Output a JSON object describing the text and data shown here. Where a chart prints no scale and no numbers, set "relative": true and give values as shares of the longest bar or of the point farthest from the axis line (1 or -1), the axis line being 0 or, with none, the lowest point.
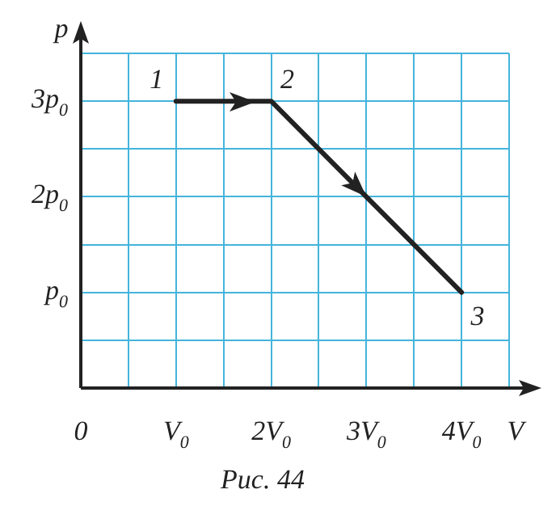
{
  "chart_data": {
    "type": "line",
    "xlabel": "V",
    "ylabel": "p",
    "relative": true,
    "categories": [
      "0",
      null,
      "V$_{0}$",
      null,
      "2V$_{0}$",
      null,
      "3V$_{0}$",
      null,
      "4V$_{0}$",
      null
    ],
    "series": [
      {
        "color": "#222222",
        "values": [
          null,
          null,
          1,
          null,
          1,
          null,
          null,
          null,
          0.3333,
          null
        ]
      }
    ],
    "grid": true,
    "marker": "none",
    "line_style": "solid",
    "legend": false,
    "annotations": [
      "p$_{0}$",
      "2p$_{0}$",
      "3p$_{0}$",
      {
        "text": "1",
        "x": "V$_{0}$",
        "y": 1
      },
      {
        "text": "2",
        "x": "2V$_{0}$",
        "y": 1
      },
      {
        "text": "3",
        "x": "4V$_{0}$",
        "y": 0.3333
      },
      "Рис. 44"
    ]
  }
}
